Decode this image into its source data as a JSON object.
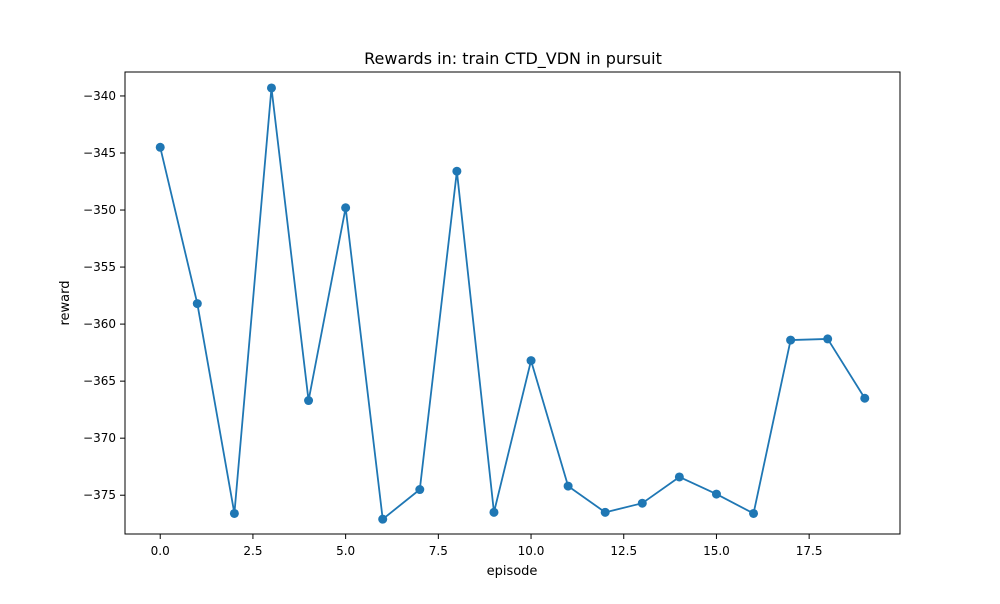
{
  "chart_data": {
    "type": "line",
    "title": "Rewards in: train CTD_VDN in pursuit",
    "xlabel": "episode",
    "ylabel": "reward",
    "x": [
      0,
      1,
      2,
      3,
      4,
      5,
      6,
      7,
      8,
      9,
      10,
      11,
      12,
      13,
      14,
      15,
      16,
      17,
      18,
      19
    ],
    "series": [
      {
        "values": [
          -344.5,
          -358.2,
          -376.6,
          -339.3,
          -366.7,
          -349.8,
          -377.1,
          -374.5,
          -346.6,
          -376.5,
          -363.2,
          -374.2,
          -376.5,
          -375.7,
          -373.4,
          -374.9,
          -376.6,
          -361.4,
          -361.3,
          -366.5
        ]
      }
    ],
    "xlim": [
      -0.95,
      19.95
    ],
    "ylim": [
      -378.4,
      -337.9
    ],
    "xticks": [
      0.0,
      2.5,
      5.0,
      7.5,
      10.0,
      12.5,
      15.0,
      17.5
    ],
    "xtick_labels": [
      "0.0",
      "2.5",
      "5.0",
      "7.5",
      "10.0",
      "12.5",
      "15.0",
      "17.5"
    ],
    "yticks": [
      -375,
      -370,
      -365,
      -360,
      -355,
      -350,
      -345,
      -340
    ],
    "ytick_labels": [
      "−375",
      "−370",
      "−365",
      "−360",
      "−355",
      "−350",
      "−345",
      "−340"
    ],
    "grid": false,
    "legend": "none",
    "colors": {
      "line": "#1f77b4",
      "marker": "#1f77b4",
      "axes": "#000000",
      "background": "#ffffff"
    }
  }
}
